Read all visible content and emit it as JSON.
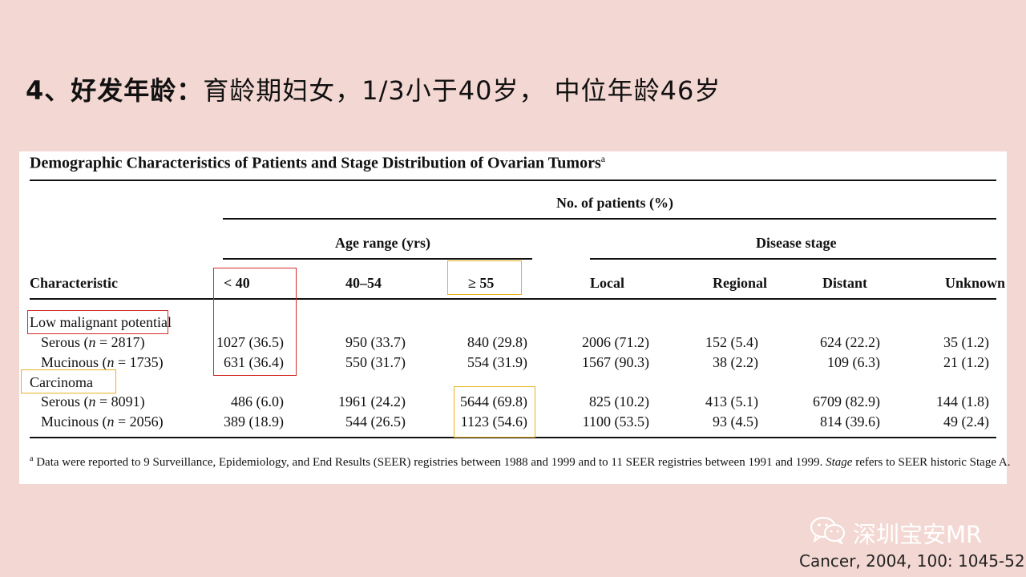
{
  "slide": {
    "title_bold": "4、好发年龄：",
    "title_rest": "育龄期妇女，1/3小于40岁， 中位年龄46岁"
  },
  "table": {
    "caption": "Demographic Characteristics of Patients and Stage Distribution of Ovarian Tumors",
    "caption_sup": "a",
    "header_group": "No. of patients (%)",
    "age_group": "Age range (yrs)",
    "stage_group": "Disease stage",
    "characteristic_header": "Characteristic",
    "columns": [
      "< 40",
      "40–54",
      "≥ 55",
      "Local",
      "Regional",
      "Distant",
      "Unknown"
    ],
    "sections": [
      {
        "label": "Low malignant potential",
        "rows": [
          {
            "name": "Serous",
            "n_prefix": "(",
            "n_var": "n",
            "n_suffix": " = 2817)",
            "values": [
              "1027 (36.5)",
              "950 (33.7)",
              "840 (29.8)",
              "2006 (71.2)",
              "152 (5.4)",
              "624 (22.2)",
              "35 (1.2)"
            ]
          },
          {
            "name": "Mucinous",
            "n_prefix": "(",
            "n_var": "n",
            "n_suffix": " = 1735)",
            "values": [
              "631 (36.4)",
              "550 (31.7)",
              "554 (31.9)",
              "1567 (90.3)",
              "38 (2.2)",
              "109 (6.3)",
              "21 (1.2)"
            ]
          }
        ]
      },
      {
        "label": "Carcinoma",
        "rows": [
          {
            "name": "Serous",
            "n_prefix": "(",
            "n_var": "n",
            "n_suffix": " = 8091)",
            "values": [
              "486 (6.0)",
              "1961 (24.2)",
              "5644 (69.8)",
              "825 (10.2)",
              "413 (5.1)",
              "6709 (82.9)",
              "144 (1.8)"
            ]
          },
          {
            "name": "Mucinous",
            "n_prefix": "(",
            "n_var": "n",
            "n_suffix": " = 2056)",
            "values": [
              "389 (18.9)",
              "544 (26.5)",
              "1123 (54.6)",
              "1100 (53.5)",
              "93 (4.5)",
              "814 (39.6)",
              "49 (2.4)"
            ]
          }
        ]
      }
    ],
    "footnote_sup": "a",
    "footnote_text": " Data were reported to 9 Surveillance, Epidemiology, and End Results (SEER) registries between 1988 and 1999 and to 11 SEER registries between 1991 and 1999. ",
    "footnote_italic": "Stage",
    "footnote_end": " refers to SEER historic Stage A."
  },
  "highlight_colors": {
    "red": "#d42a2a",
    "yellow": "#e8b320"
  },
  "watermark": {
    "icon": "wechat-icon",
    "text": "深圳宝安MR"
  },
  "citation": "Cancer, 2004, 100: 1045-52"
}
